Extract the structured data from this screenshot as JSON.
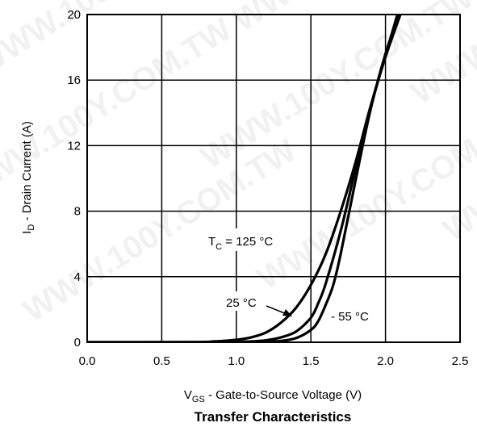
{
  "chart_data": {
    "type": "line",
    "title": "Transfer Characteristics",
    "xlabel": {
      "sym": "V",
      "sub": "GS",
      "text": " - Gate-to-Source Voltage (V)"
    },
    "ylabel": {
      "sym": "I",
      "sub": "D",
      "text": " - Drain Current (A)"
    },
    "xlim": [
      0.0,
      2.5
    ],
    "ylim": [
      0,
      20
    ],
    "xticks": [
      0.0,
      0.5,
      1.0,
      1.5,
      2.0,
      2.5
    ],
    "xtick_labels": [
      "0.0",
      "0.5",
      "1.0",
      "1.5",
      "2.0",
      "2.5"
    ],
    "yticks": [
      0,
      4,
      8,
      12,
      16,
      20
    ],
    "ytick_labels": [
      "0",
      "4",
      "8",
      "12",
      "16",
      "20"
    ],
    "grid": true,
    "series": [
      {
        "name": "125 °C",
        "x": [
          0.0,
          0.7,
          0.85,
          1.0,
          1.1,
          1.2,
          1.3,
          1.4,
          1.5,
          1.6,
          1.7,
          1.8,
          1.9,
          2.0,
          2.1
        ],
        "y": [
          0.0,
          0.01,
          0.05,
          0.15,
          0.3,
          0.6,
          1.2,
          2.1,
          3.5,
          5.4,
          8.0,
          11.0,
          14.4,
          17.4,
          20.0
        ]
      },
      {
        "name": "25 °C",
        "x": [
          0.0,
          0.9,
          1.0,
          1.1,
          1.2,
          1.3,
          1.4,
          1.5,
          1.55,
          1.6,
          1.7,
          1.8,
          1.9,
          2.0,
          2.08
        ],
        "y": [
          0.0,
          0.0,
          0.02,
          0.05,
          0.12,
          0.3,
          0.65,
          1.5,
          2.4,
          3.6,
          6.8,
          10.6,
          14.3,
          17.5,
          20.0
        ]
      },
      {
        "name": "- 55 °C",
        "x": [
          0.0,
          1.0,
          1.2,
          1.3,
          1.4,
          1.5,
          1.55,
          1.6,
          1.65,
          1.7,
          1.8,
          1.9,
          2.0,
          2.09
        ],
        "y": [
          0.0,
          0.0,
          0.02,
          0.08,
          0.25,
          0.75,
          1.3,
          2.3,
          3.5,
          5.4,
          9.9,
          14.2,
          17.6,
          20.0
        ]
      }
    ],
    "annotations": {
      "tc_prefix": "T",
      "tc_sub": "C",
      "tc_rest": " = 125 °C",
      "t25": "25 °C",
      "tm55": "- 55 °C"
    },
    "watermark": "WWW.100Y.COM.TW"
  }
}
